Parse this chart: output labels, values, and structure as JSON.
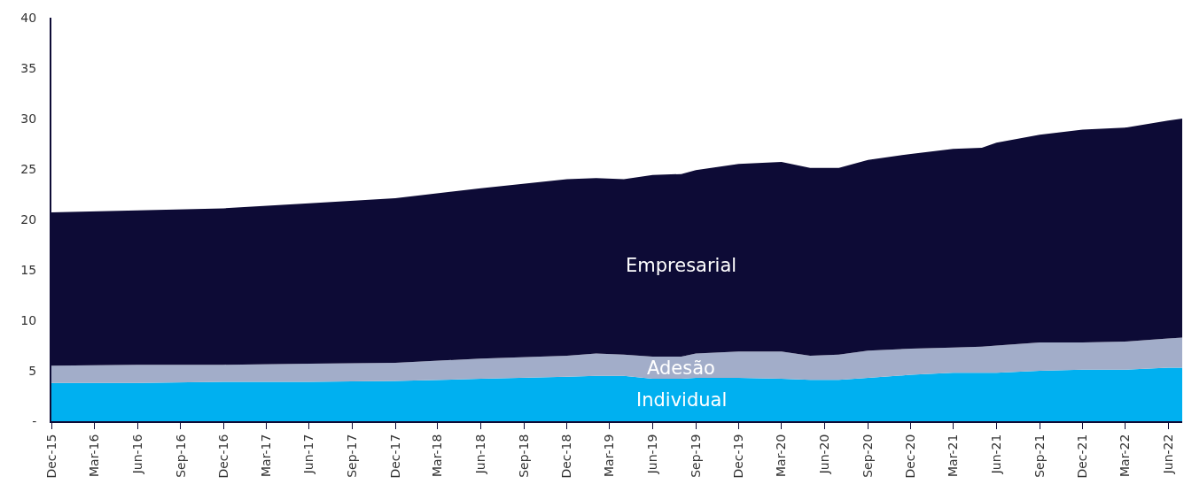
{
  "chart_data": {
    "type": "area",
    "stacked": true,
    "legend": false,
    "grid": false,
    "x": [
      "2015-12",
      "2016-06",
      "2016-12",
      "2017-06",
      "2017-12",
      "2018-06",
      "2018-12",
      "2019-02",
      "2019-04",
      "2019-06",
      "2019-08",
      "2019-09",
      "2019-12",
      "2020-03",
      "2020-05",
      "2020-07",
      "2020-09",
      "2020-12",
      "2021-03",
      "2021-05",
      "2021-06",
      "2021-09",
      "2021-12",
      "2022-03",
      "2022-06",
      "2022-07"
    ],
    "series": [
      {
        "name": "Individual",
        "color": "#00b0f0",
        "values": [
          3.8,
          3.8,
          3.9,
          3.9,
          4.0,
          4.2,
          4.4,
          4.5,
          4.5,
          4.2,
          4.2,
          4.3,
          4.3,
          4.2,
          4.1,
          4.1,
          4.3,
          4.6,
          4.8,
          4.8,
          4.8,
          5.0,
          5.1,
          5.1,
          5.3,
          5.3
        ]
      },
      {
        "name": "Adesão",
        "color": "#a2adc9",
        "values": [
          1.7,
          1.8,
          1.7,
          1.8,
          1.8,
          2.0,
          2.1,
          2.2,
          2.1,
          2.2,
          2.2,
          2.4,
          2.6,
          2.7,
          2.4,
          2.5,
          2.7,
          2.6,
          2.5,
          2.6,
          2.7,
          2.8,
          2.7,
          2.8,
          2.9,
          3.0
        ]
      },
      {
        "name": "Empresarial",
        "color": "#0d0b36",
        "values": [
          15.2,
          15.3,
          15.5,
          15.9,
          16.3,
          16.9,
          17.5,
          17.4,
          17.4,
          18.0,
          18.1,
          18.2,
          18.6,
          18.8,
          18.6,
          18.5,
          18.9,
          19.3,
          19.7,
          19.7,
          20.1,
          20.6,
          21.1,
          21.2,
          21.6,
          21.7
        ]
      }
    ],
    "xlim": [
      "2015-12",
      "2022-07"
    ],
    "xticks": [
      {
        "value": "2015-12",
        "label": "Dec-15"
      },
      {
        "value": "2016-03",
        "label": "Mar-16"
      },
      {
        "value": "2016-06",
        "label": "Jun-16"
      },
      {
        "value": "2016-09",
        "label": "Sep-16"
      },
      {
        "value": "2016-12",
        "label": "Dec-16"
      },
      {
        "value": "2017-03",
        "label": "Mar-17"
      },
      {
        "value": "2017-06",
        "label": "Jun-17"
      },
      {
        "value": "2017-09",
        "label": "Sep-17"
      },
      {
        "value": "2017-12",
        "label": "Dec-17"
      },
      {
        "value": "2018-03",
        "label": "Mar-18"
      },
      {
        "value": "2018-06",
        "label": "Jun-18"
      },
      {
        "value": "2018-09",
        "label": "Sep-18"
      },
      {
        "value": "2018-12",
        "label": "Dec-18"
      },
      {
        "value": "2019-03",
        "label": "Mar-19"
      },
      {
        "value": "2019-06",
        "label": "Jun-19"
      },
      {
        "value": "2019-09",
        "label": "Sep-19"
      },
      {
        "value": "2019-12",
        "label": "Dec-19"
      },
      {
        "value": "2020-03",
        "label": "Mar-20"
      },
      {
        "value": "2020-06",
        "label": "Jun-20"
      },
      {
        "value": "2020-09",
        "label": "Sep-20"
      },
      {
        "value": "2020-12",
        "label": "Dec-20"
      },
      {
        "value": "2021-03",
        "label": "Mar-21"
      },
      {
        "value": "2021-06",
        "label": "Jun-21"
      },
      {
        "value": "2021-09",
        "label": "Sep-21"
      },
      {
        "value": "2021-12",
        "label": "Dec-21"
      },
      {
        "value": "2022-03",
        "label": "Mar-22"
      },
      {
        "value": "2022-06",
        "label": "Jun-22"
      }
    ],
    "ylim": [
      0,
      40
    ],
    "yticks": [
      {
        "value": 0,
        "label": "-"
      },
      5,
      10,
      15,
      20,
      25,
      30,
      35,
      40
    ]
  }
}
